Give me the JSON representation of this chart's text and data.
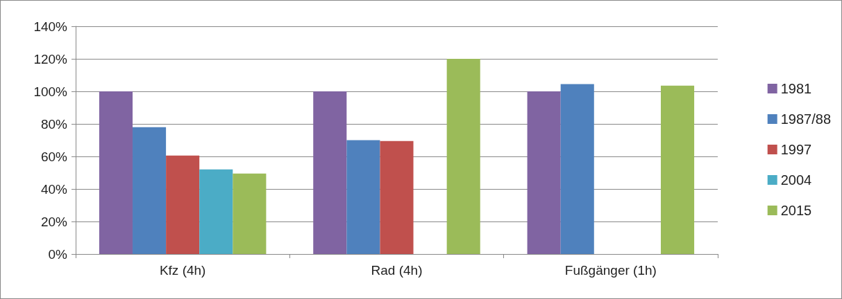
{
  "chart_data": {
    "type": "bar",
    "categories": [
      "Kfz (4h)",
      "Rad (4h)",
      "Fußgänger (1h)"
    ],
    "series": [
      {
        "name": "1981",
        "color": "#8064a2",
        "values": [
          100,
          100,
          100
        ]
      },
      {
        "name": "1987/88",
        "color": "#4f81bd",
        "values": [
          78,
          70,
          104.5
        ]
      },
      {
        "name": "1997",
        "color": "#c0504d",
        "values": [
          60.5,
          69.5,
          null
        ]
      },
      {
        "name": "2004",
        "color": "#4bacc6",
        "values": [
          52,
          null,
          null
        ]
      },
      {
        "name": "2015",
        "color": "#9bbb59",
        "values": [
          49.5,
          120,
          103.5
        ]
      }
    ],
    "ylim": [
      0,
      140
    ],
    "yticks": [
      {
        "value": 0,
        "label": "0%"
      },
      {
        "value": 20,
        "label": "20%"
      },
      {
        "value": 40,
        "label": "40%"
      },
      {
        "value": 60,
        "label": "60%"
      },
      {
        "value": 80,
        "label": "80%"
      },
      {
        "value": 100,
        "label": "100%"
      },
      {
        "value": 120,
        "label": "120%"
      },
      {
        "value": 140,
        "label": "140%"
      }
    ],
    "grid": "y",
    "legend": "right"
  }
}
